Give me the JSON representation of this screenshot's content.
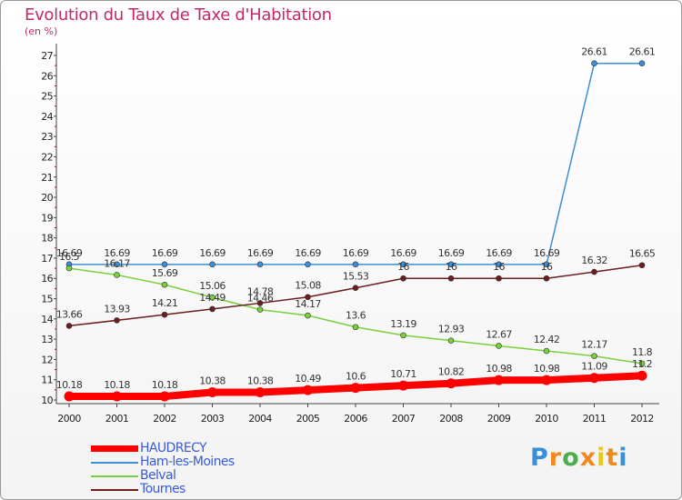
{
  "title": "Evolution du Taux de Taxe d'Habitation",
  "subtitle": "(en %)",
  "logo": {
    "letters": [
      "P",
      "r",
      "o",
      "x",
      "i",
      "t",
      "i"
    ],
    "colors": [
      "#3b8fd6",
      "#f08a1c",
      "#4cae4c",
      "#f08a1c",
      "#e8c81a",
      "#f08a1c",
      "#3b8fd6"
    ]
  },
  "chart_data": {
    "type": "line",
    "title": "Evolution du Taux de Taxe d'Habitation",
    "ylabel": "(en %)",
    "xlabel": "",
    "x": [
      "2000",
      "2001",
      "2002",
      "2003",
      "2004",
      "2005",
      "2006",
      "2007",
      "2008",
      "2009",
      "2010",
      "2011",
      "2012"
    ],
    "ylim": [
      10,
      27
    ],
    "yticks": [
      "10",
      "11",
      "12",
      "13",
      "14",
      "15",
      "16",
      "17",
      "18",
      "19",
      "20",
      "21",
      "22",
      "23",
      "24",
      "25",
      "26",
      "27"
    ],
    "grid": false,
    "legend": "bottom-left",
    "series": [
      {
        "name": "HAUDRECY",
        "color": "#ff0000",
        "values": [
          10.18,
          10.18,
          10.18,
          10.38,
          10.38,
          10.49,
          10.6,
          10.71,
          10.82,
          10.98,
          10.98,
          11.09,
          11.2
        ],
        "labels": [
          "10.18",
          "10.18",
          "10.18",
          "10.38",
          "10.38",
          "10.49",
          "10.6",
          "10.71",
          "10.82",
          "10.98",
          "10.98",
          "11.09",
          "11.2"
        ]
      },
      {
        "name": "Ham-les-Moines",
        "color": "#3b8fd6",
        "values": [
          16.69,
          16.69,
          16.69,
          16.69,
          16.69,
          16.69,
          16.69,
          16.69,
          16.69,
          16.69,
          16.69,
          26.61,
          26.61
        ],
        "labels": [
          "16.69",
          "16.69",
          "16.69",
          "16.69",
          "16.69",
          "16.69",
          "16.69",
          "16.69",
          "16.69",
          "16.69",
          "16.69",
          "26.61",
          "26.61"
        ]
      },
      {
        "name": "Belval",
        "color": "#7ad03a",
        "values": [
          16.5,
          16.17,
          15.69,
          15.06,
          14.46,
          14.17,
          13.6,
          13.19,
          12.93,
          12.67,
          12.42,
          12.17,
          11.8
        ],
        "labels": [
          "16.5",
          "16.17",
          "15.69",
          "15.06",
          "14.46",
          "14.17",
          "13.6",
          "13.19",
          "12.93",
          "12.67",
          "12.42",
          "12.17",
          "11.8"
        ]
      },
      {
        "name": "Tournes",
        "color": "#6b1e1e",
        "values": [
          13.66,
          13.93,
          14.21,
          14.49,
          14.78,
          15.08,
          15.53,
          16,
          16,
          16,
          16,
          16.32,
          16.65
        ],
        "labels": [
          "13.66",
          "13.93",
          "14.21",
          "14.49",
          "14.78",
          "15.08",
          "15.53",
          "16",
          "16",
          "16",
          "16",
          "16.32",
          "16.65"
        ]
      }
    ]
  }
}
